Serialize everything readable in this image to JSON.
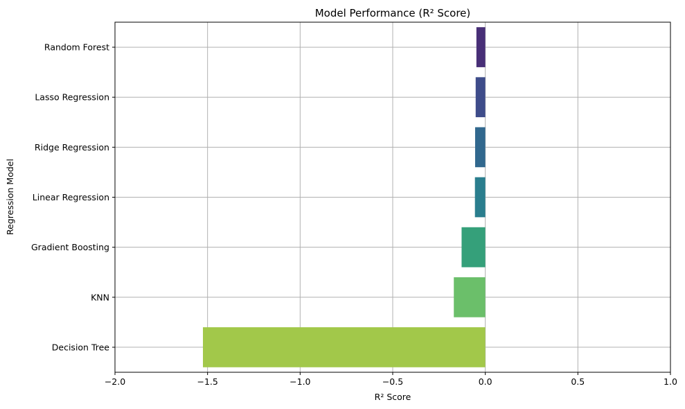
{
  "chart_data": {
    "type": "bar",
    "orientation": "horizontal",
    "title": "Model Performance (R² Score)",
    "xlabel": "R² Score",
    "ylabel": "Regression Model",
    "categories": [
      "Random Forest",
      "Lasso Regression",
      "Ridge Regression",
      "Linear Regression",
      "Gradient Boosting",
      "KNN",
      "Decision Tree"
    ],
    "values": [
      -0.048,
      -0.052,
      -0.055,
      -0.056,
      -0.128,
      -0.17,
      -1.525
    ],
    "colors": [
      "#482f77",
      "#3e4c8a",
      "#31688e",
      "#2a7e8e",
      "#35a07a",
      "#6bbf6a",
      "#a2c84a"
    ],
    "xlim": [
      -2.0,
      1.0
    ],
    "xticks": [
      -2.0,
      -1.5,
      -1.0,
      -0.5,
      0.0,
      0.5,
      1.0
    ],
    "xtick_labels": [
      "−2.0",
      "−1.5",
      "−1.0",
      "−0.5",
      "0.0",
      "0.5",
      "1.0"
    ],
    "grid": true
  }
}
